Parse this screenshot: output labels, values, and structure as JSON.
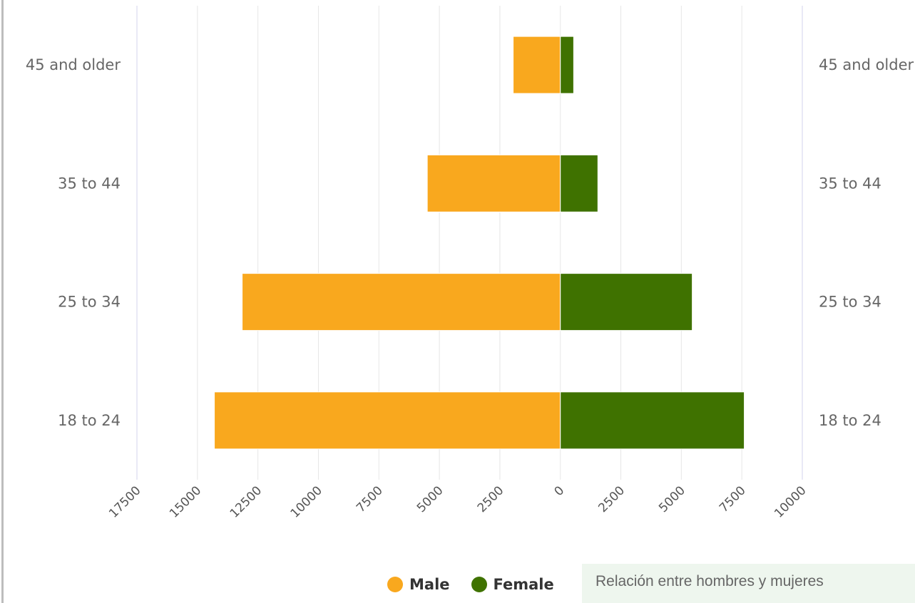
{
  "chart_data": {
    "type": "bar",
    "orientation": "horizontal-diverging",
    "categories": [
      "45 and older",
      "35 to 44",
      "25 to 34",
      "18 to 24"
    ],
    "series": [
      {
        "name": "Male",
        "color": "#f9a81e",
        "values": [
          1950,
          5500,
          13150,
          14300
        ]
      },
      {
        "name": "Female",
        "color": "#3f7200",
        "values": [
          550,
          1550,
          5450,
          7600
        ]
      }
    ],
    "xlim": [
      -17500,
      10000
    ],
    "x_ticks": [
      -17500,
      -15000,
      -12500,
      -10000,
      -7500,
      -5000,
      -2500,
      0,
      2500,
      5000,
      7500,
      10000
    ],
    "x_tick_labels": [
      "17500",
      "15000",
      "12500",
      "10000",
      "7500",
      "5000",
      "2500",
      "0",
      "2500",
      "5000",
      "7500",
      "10000"
    ],
    "grid": true,
    "legend_position": "bottom-center",
    "category_labels_both_sides": true
  },
  "legend": {
    "items": [
      {
        "label": "Male",
        "color": "#f9a81e"
      },
      {
        "label": "Female",
        "color": "#3f7200"
      }
    ]
  },
  "relation_box": {
    "text": "Relación entre hombres y mujeres"
  }
}
